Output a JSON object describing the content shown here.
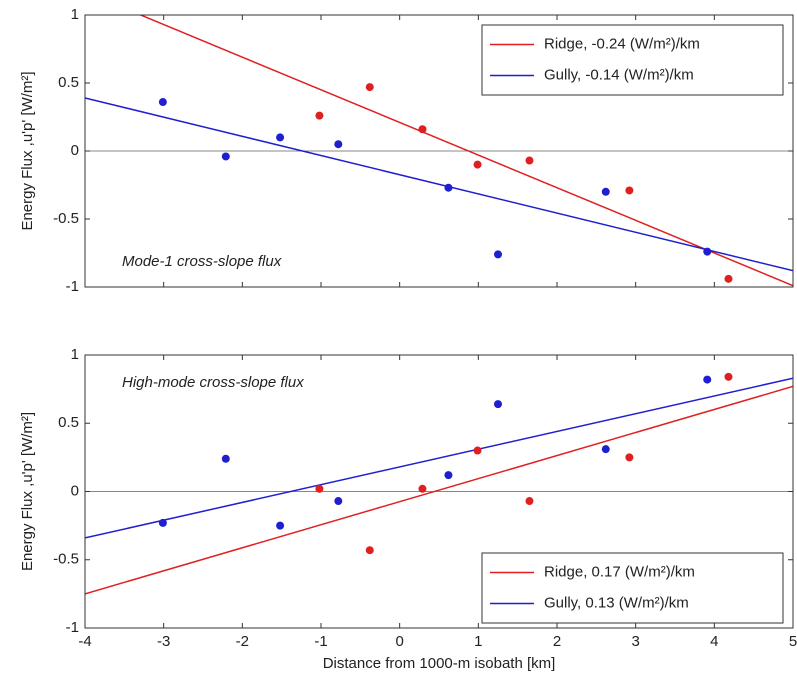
{
  "chart_data": [
    {
      "type": "line",
      "ylabel": "Energy Flux ,u'p' [W/m²]",
      "annotation": "Mode-1 cross-slope flux",
      "xlim": [
        -4,
        5
      ],
      "xticks": [
        -4,
        -3,
        -2,
        -1,
        0,
        1,
        2,
        3,
        4,
        5
      ],
      "xticklabels": false,
      "ylim": [
        -1,
        1
      ],
      "yticks": [
        -1,
        -0.5,
        0,
        0.5,
        1
      ],
      "zero_line": true,
      "legend": "upper right",
      "series": [
        {
          "name": "Ridge, -0.24 (W/m²)/km",
          "color": "#e02020",
          "x": [
            -4,
            5
          ],
          "values": [
            1.17,
            -0.99
          ]
        },
        {
          "name": "Gully, -0.14 (W/m²)/km",
          "color": "#1f1fd0",
          "x": [
            -4,
            5
          ],
          "values": [
            0.39,
            -0.88
          ]
        }
      ],
      "points": [
        {
          "color": "#e02020",
          "x": [
            -1.02,
            -0.38,
            0.29,
            0.99,
            1.65,
            2.92,
            4.18
          ],
          "values": [
            0.26,
            0.47,
            0.16,
            -0.1,
            -0.07,
            -0.29,
            -0.94
          ]
        },
        {
          "color": "#1f1fd0",
          "x": [
            -3.01,
            -2.21,
            -1.52,
            -0.78,
            0.62,
            1.25,
            2.62,
            3.91
          ],
          "values": [
            0.36,
            -0.04,
            0.1,
            0.05,
            -0.27,
            -0.76,
            -0.3,
            -0.74
          ]
        }
      ]
    },
    {
      "type": "line",
      "ylabel": "Energy Flux ,u'p' [W/m²]",
      "xlabel": "Distance from 1000-m isobath [km]",
      "annotation": "High-mode cross-slope flux",
      "xlim": [
        -4,
        5
      ],
      "xticks": [
        -4,
        -3,
        -2,
        -1,
        0,
        1,
        2,
        3,
        4,
        5
      ],
      "xticklabels": true,
      "ylim": [
        -1,
        1
      ],
      "yticks": [
        -1,
        -0.5,
        0,
        0.5,
        1
      ],
      "zero_line": true,
      "legend": "lower right",
      "series": [
        {
          "name": "Ridge, 0.17 (W/m²)/km",
          "color": "#e02020",
          "x": [
            -4,
            5
          ],
          "values": [
            -0.75,
            0.77
          ]
        },
        {
          "name": "Gully, 0.13 (W/m²)/km",
          "color": "#1f1fd0",
          "x": [
            -4,
            5
          ],
          "values": [
            -0.34,
            0.83
          ]
        }
      ],
      "points": [
        {
          "color": "#e02020",
          "x": [
            -1.02,
            -0.38,
            0.29,
            0.99,
            1.65,
            2.92,
            4.18
          ],
          "values": [
            0.02,
            -0.43,
            0.02,
            0.3,
            -0.07,
            0.25,
            0.84
          ]
        },
        {
          "color": "#1f1fd0",
          "x": [
            -3.01,
            -2.21,
            -1.52,
            -0.78,
            0.62,
            1.25,
            2.62,
            3.91
          ],
          "values": [
            -0.23,
            0.24,
            -0.25,
            -0.07,
            0.12,
            0.64,
            0.31,
            0.82
          ]
        }
      ]
    }
  ]
}
